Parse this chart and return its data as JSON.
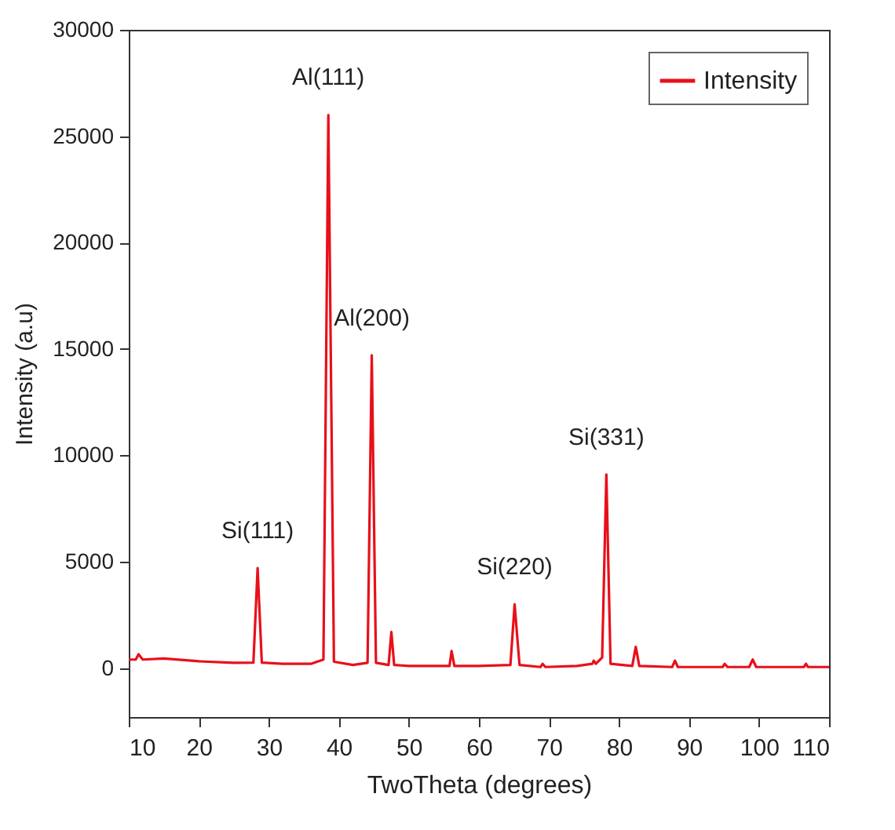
{
  "chart_data": {
    "type": "line",
    "xlabel": "TwoTheta (degrees)",
    "ylabel": "Intensity (a.u)",
    "xlim": [
      10,
      110
    ],
    "xticks": [
      10,
      20,
      30,
      40,
      50,
      60,
      70,
      80,
      90,
      100,
      110
    ],
    "ylim": [
      -2300,
      30000
    ],
    "yticks": [
      0,
      5000,
      10000,
      15000,
      20000,
      25000,
      30000
    ],
    "grid": false,
    "legend": "top right",
    "marker": "none",
    "line_style": "solid",
    "x": [
      10,
      11,
      11.4,
      12,
      15,
      20,
      25,
      27.8,
      28.4,
      29,
      32,
      36,
      37.8,
      38.5,
      39.3,
      42,
      44.1,
      44.7,
      45.3,
      47.1,
      47.5,
      47.9,
      50,
      55.8,
      56.1,
      56.5,
      60,
      64.5,
      65.1,
      65.8,
      68.8,
      69.1,
      69.5,
      74,
      76.2,
      76.4,
      76.7,
      77.6,
      78.2,
      78.8,
      81.9,
      82.4,
      82.9,
      87.6,
      88,
      88.4,
      94.8,
      95.1,
      95.5,
      98.6,
      99.1,
      99.6,
      106.4,
      106.7,
      107,
      110
    ],
    "series": [
      {
        "name": "Intensity",
        "color": "#e8101a",
        "values": [
          400,
          400,
          650,
          400,
          450,
          320,
          250,
          260,
          4700,
          260,
          200,
          200,
          400,
          26000,
          300,
          150,
          250,
          14700,
          250,
          150,
          1700,
          150,
          100,
          100,
          800,
          100,
          100,
          150,
          3000,
          150,
          50,
          200,
          50,
          100,
          200,
          350,
          200,
          500,
          9100,
          200,
          100,
          1000,
          100,
          50,
          350,
          50,
          50,
          200,
          50,
          50,
          400,
          50,
          50,
          200,
          50,
          50
        ]
      }
    ],
    "annotations": [
      {
        "text": "Si(111)",
        "x": 28.4,
        "y": 4700
      },
      {
        "text": "Al(111)",
        "x": 38.5,
        "y": 26000
      },
      {
        "text": "Al(200)",
        "x": 44.7,
        "y": 14700
      },
      {
        "text": "Si(220)",
        "x": 65.1,
        "y": 3000
      },
      {
        "text": "Si(331)",
        "x": 78.2,
        "y": 9100
      }
    ]
  }
}
